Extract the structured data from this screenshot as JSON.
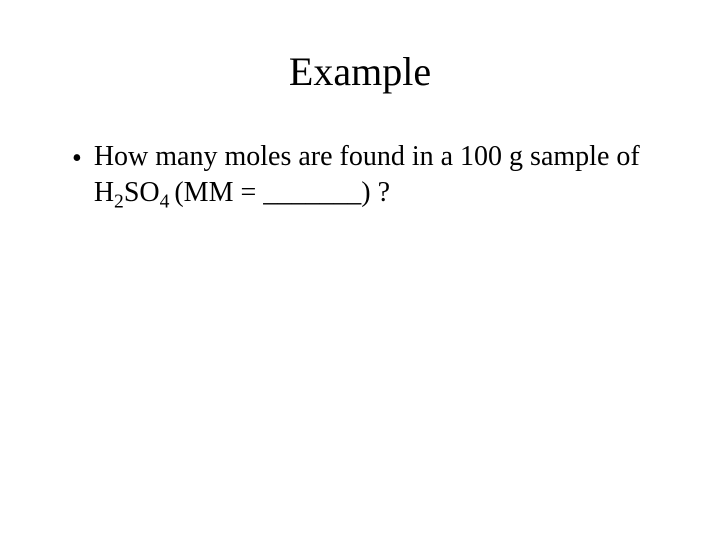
{
  "slide": {
    "title": "Example",
    "title_fontsize": 40,
    "title_color": "#000000",
    "background_color": "#ffffff",
    "bullet_marker": "•",
    "body_fontsize": 28,
    "body_color": "#000000",
    "font_family": "Times New Roman",
    "bullet": {
      "part1": "How many moles are found in a 100 g sample of H",
      "sub1": "2",
      "part2": "SO",
      "sub2": "4 ",
      "part3": "(MM  =  _______) ?"
    }
  }
}
